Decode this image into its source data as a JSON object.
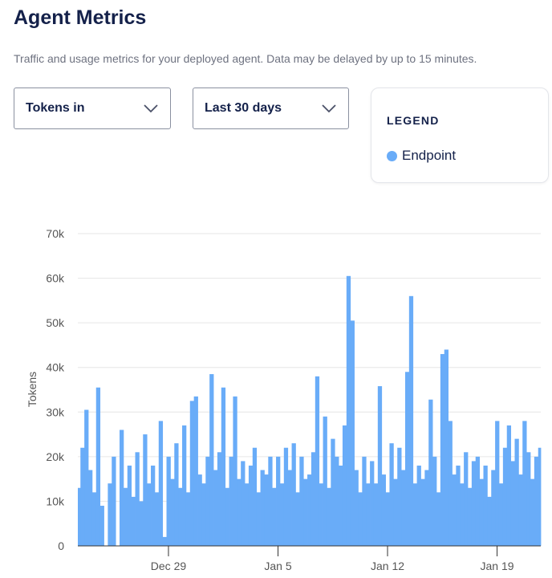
{
  "header": {
    "title": "Agent Metrics",
    "subtitle": "Traffic and usage metrics for your deployed agent. Data may be delayed by up to 15 minutes."
  },
  "controls": {
    "metric_select": {
      "value": "Tokens in",
      "icon": "chevron-down-icon"
    },
    "range_select": {
      "value": "Last 30 days",
      "icon": "chevron-down-icon"
    }
  },
  "legend": {
    "title": "LEGEND",
    "items": [
      {
        "label": "Endpoint",
        "color": "#69acf8"
      }
    ]
  },
  "chart_data": {
    "type": "area",
    "ylabel": "Tokens",
    "ylim": [
      0,
      70000
    ],
    "y_ticks": [
      {
        "value": 0,
        "label": "0"
      },
      {
        "value": 10000,
        "label": "10k"
      },
      {
        "value": 20000,
        "label": "20k"
      },
      {
        "value": 30000,
        "label": "30k"
      },
      {
        "value": 40000,
        "label": "40k"
      },
      {
        "value": 50000,
        "label": "50k"
      },
      {
        "value": 60000,
        "label": "60k"
      },
      {
        "value": 70000,
        "label": "70k"
      }
    ],
    "x_ticks": [
      "Dec 29",
      "Jan 5",
      "Jan 12",
      "Jan 19"
    ],
    "xlim": [
      "Dec 23 05:00",
      "Jan 21 19:00"
    ],
    "grid": true,
    "sample_hours": [
      0,
      6,
      12,
      18
    ],
    "series": [
      {
        "name": "Endpoint",
        "color": "#69acf8",
        "days": [
          {
            "date": "Dec 23",
            "values": [
              null,
              13000,
              22000,
              30500
            ]
          },
          {
            "date": "Dec 24",
            "values": [
              17000,
              12000,
              35500,
              9000
            ]
          },
          {
            "date": "Dec 25",
            "values": [
              0,
              14000,
              20000,
              0
            ]
          },
          {
            "date": "Dec 26",
            "values": [
              26000,
              13000,
              18000,
              11000
            ]
          },
          {
            "date": "Dec 27",
            "values": [
              21000,
              10000,
              25000,
              14000
            ]
          },
          {
            "date": "Dec 28",
            "values": [
              18000,
              12000,
              28000,
              2000
            ]
          },
          {
            "date": "Dec 29",
            "values": [
              20000,
              15000,
              23000,
              13000
            ]
          },
          {
            "date": "Dec 30",
            "values": [
              27000,
              12000,
              32500,
              33500
            ]
          },
          {
            "date": "Dec 31",
            "values": [
              16000,
              14000,
              20000,
              38500
            ]
          },
          {
            "date": "Jan 1",
            "values": [
              17000,
              21000,
              35500,
              13000
            ]
          },
          {
            "date": "Jan 2",
            "values": [
              20000,
              33500,
              15000,
              19000
            ]
          },
          {
            "date": "Jan 3",
            "values": [
              14000,
              18000,
              22000,
              12000
            ]
          },
          {
            "date": "Jan 4",
            "values": [
              17000,
              16000,
              20000,
              13000
            ]
          },
          {
            "date": "Jan 5",
            "values": [
              20000,
              14000,
              22000,
              17000
            ]
          },
          {
            "date": "Jan 6",
            "values": [
              23000,
              12000,
              20000,
              15000
            ]
          },
          {
            "date": "Jan 7",
            "values": [
              16000,
              21000,
              38000,
              14000
            ]
          },
          {
            "date": "Jan 8",
            "values": [
              29000,
              13000,
              24000,
              20000
            ]
          },
          {
            "date": "Jan 9",
            "values": [
              18000,
              27000,
              60500,
              50500
            ]
          },
          {
            "date": "Jan 10",
            "values": [
              17000,
              12000,
              20000,
              14000
            ]
          },
          {
            "date": "Jan 11",
            "values": [
              19000,
              14000,
              35800,
              16000
            ]
          },
          {
            "date": "Jan 12",
            "values": [
              12000,
              23000,
              15000,
              22000
            ]
          },
          {
            "date": "Jan 13",
            "values": [
              17000,
              39000,
              56000,
              14000
            ]
          },
          {
            "date": "Jan 14",
            "values": [
              18000,
              15000,
              17000,
              32800
            ]
          },
          {
            "date": "Jan 15",
            "values": [
              20000,
              12000,
              43000,
              44000
            ]
          },
          {
            "date": "Jan 16",
            "values": [
              28000,
              16000,
              18000,
              14000
            ]
          },
          {
            "date": "Jan 17",
            "values": [
              21000,
              13000,
              19000,
              20000
            ]
          },
          {
            "date": "Jan 18",
            "values": [
              15000,
              18000,
              11000,
              17000
            ]
          },
          {
            "date": "Jan 19",
            "values": [
              28000,
              14000,
              22000,
              27000
            ]
          },
          {
            "date": "Jan 20",
            "values": [
              19000,
              24000,
              16000,
              28000
            ]
          },
          {
            "date": "Jan 21",
            "values": [
              21000,
              15000,
              20000,
              22000
            ]
          }
        ]
      }
    ]
  }
}
